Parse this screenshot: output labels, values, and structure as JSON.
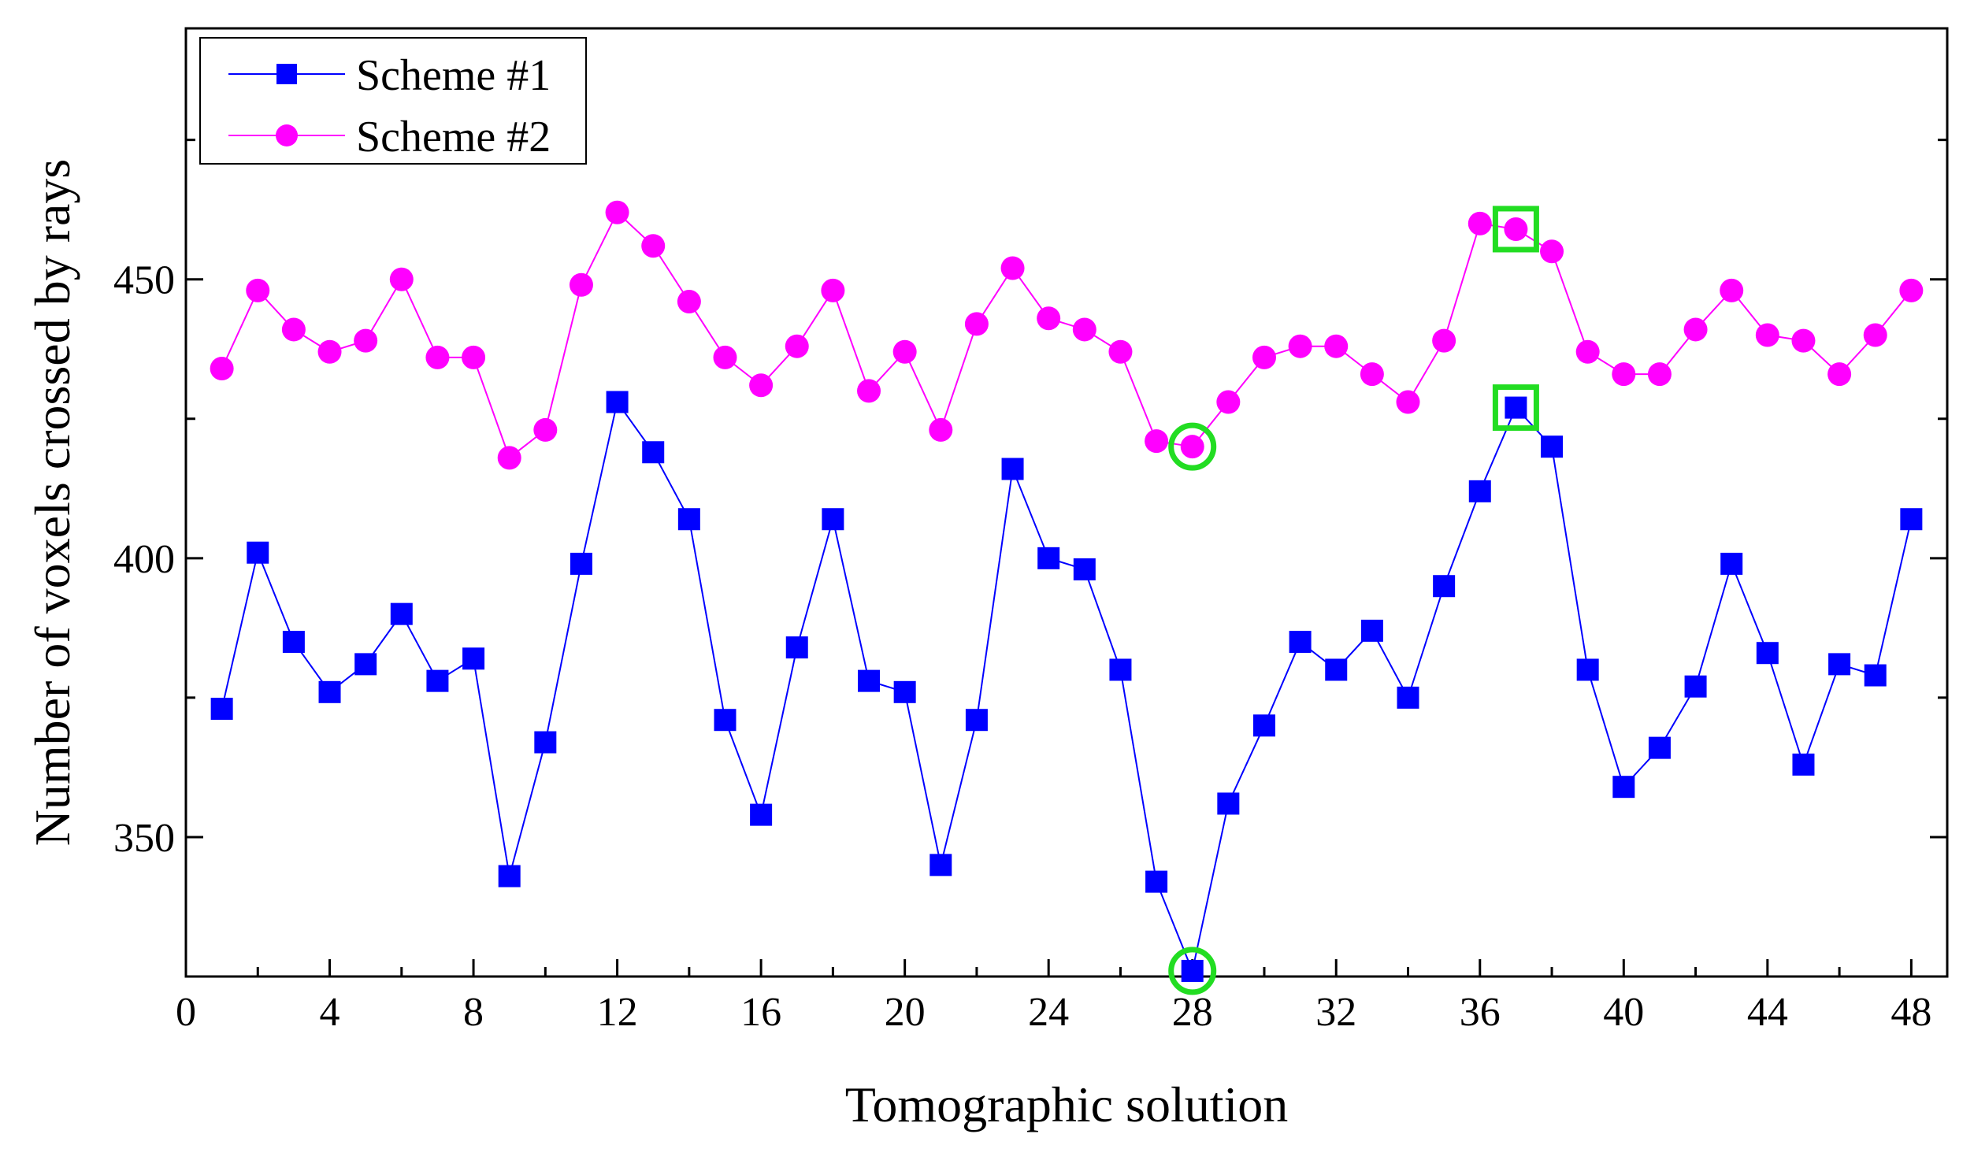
{
  "chart_data": {
    "type": "line",
    "title": "",
    "xlabel": "Tomographic solution",
    "ylabel": "Number of voxels crossed by rays",
    "xlim": [
      0,
      49
    ],
    "ylim": [
      325,
      495
    ],
    "xticks": [
      0,
      4,
      8,
      12,
      16,
      20,
      24,
      28,
      32,
      36,
      40,
      44,
      48
    ],
    "xtick_labels": [
      "0",
      "4",
      "8",
      "12",
      "16",
      "20",
      "24",
      "28",
      "32",
      "36",
      "40",
      "44",
      "48"
    ],
    "yticks": [
      350,
      400,
      450
    ],
    "ytick_labels": [
      "350",
      "400",
      "450"
    ],
    "legend_position": "top-left",
    "grid": false,
    "x": [
      1,
      2,
      3,
      4,
      5,
      6,
      7,
      8,
      9,
      10,
      11,
      12,
      13,
      14,
      15,
      16,
      17,
      18,
      19,
      20,
      21,
      22,
      23,
      24,
      25,
      26,
      27,
      28,
      29,
      30,
      31,
      32,
      33,
      34,
      35,
      36,
      37,
      38,
      39,
      40,
      41,
      42,
      43,
      44,
      45,
      46,
      47,
      48
    ],
    "series": [
      {
        "name": "Scheme #1",
        "marker": "square",
        "color": "#0000FF",
        "values": [
          373,
          401,
          385,
          376,
          381,
          390,
          378,
          382,
          343,
          367,
          399,
          428,
          419,
          407,
          371,
          354,
          384,
          407,
          378,
          376,
          345,
          371,
          416,
          400,
          398,
          380,
          342,
          326,
          356,
          370,
          385,
          380,
          387,
          375,
          395,
          412,
          427,
          420,
          380,
          359,
          366,
          377,
          399,
          383,
          363,
          381,
          379,
          407
        ]
      },
      {
        "name": "Scheme #2",
        "marker": "circle",
        "color": "#FF00FF",
        "values": [
          434,
          448,
          441,
          437,
          439,
          450,
          436,
          436,
          418,
          423,
          449,
          462,
          456,
          446,
          436,
          431,
          438,
          448,
          430,
          437,
          423,
          442,
          452,
          443,
          441,
          437,
          421,
          420,
          428,
          436,
          438,
          438,
          433,
          428,
          439,
          460,
          459,
          455,
          437,
          433,
          433,
          441,
          448,
          440,
          439,
          433,
          440,
          448
        ]
      }
    ],
    "highlights": [
      {
        "series": "Scheme #1",
        "x": 28,
        "value": 326,
        "shape": "circle",
        "color": "#22DD22"
      },
      {
        "series": "Scheme #2",
        "x": 28,
        "value": 420,
        "shape": "circle",
        "color": "#22DD22"
      },
      {
        "series": "Scheme #1",
        "x": 37,
        "value": 427,
        "shape": "square",
        "color": "#22DD22"
      },
      {
        "series": "Scheme #2",
        "x": 37,
        "value": 459,
        "shape": "square",
        "color": "#22DD22"
      }
    ]
  }
}
